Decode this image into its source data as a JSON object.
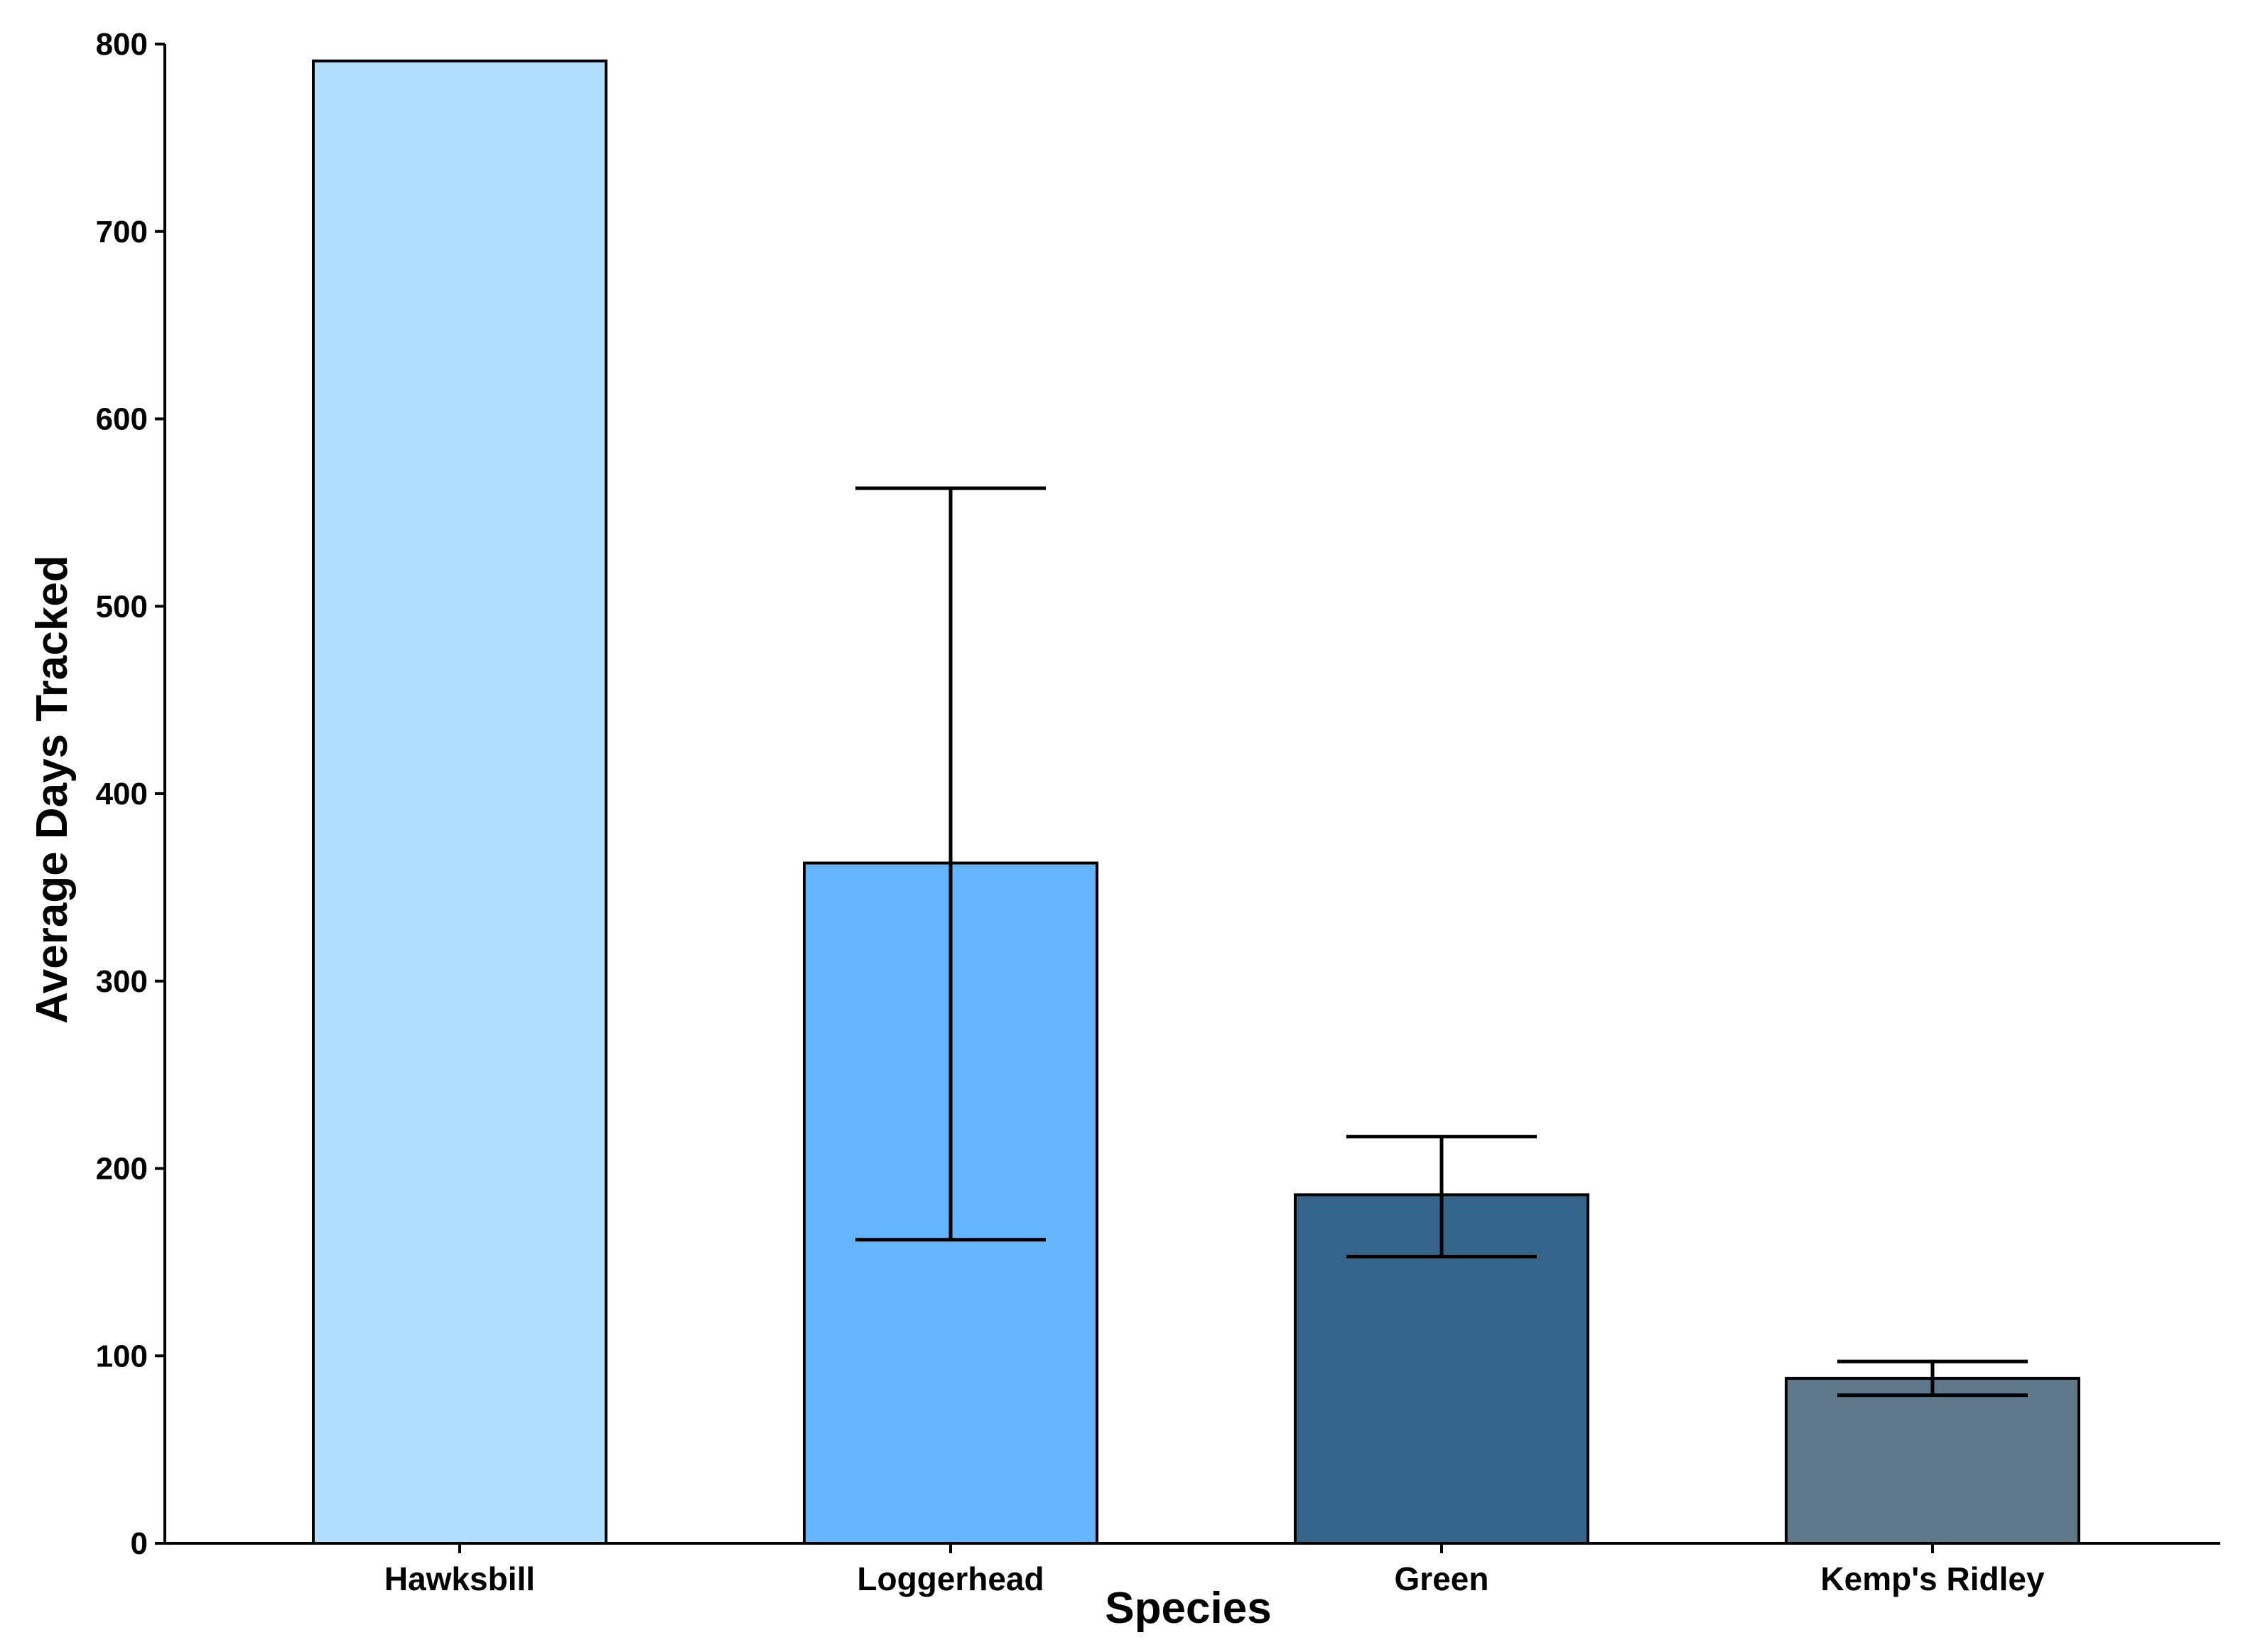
{
  "chart_data": {
    "type": "bar",
    "title": "",
    "xlabel": "Species",
    "ylabel": "Average Days Tracked",
    "categories": [
      "Hawksbill",
      "Loggerhead",
      "Green",
      "Kemp's Ridley"
    ],
    "values": [
      791,
      363,
      186,
      88
    ],
    "error_bars": [
      null,
      {
        "low": 162,
        "high": 563
      },
      {
        "low": 153,
        "high": 217
      },
      {
        "low": 79,
        "high": 97
      }
    ],
    "colors": [
      "#B0DFFF",
      "#64B5FD",
      "#36658C",
      "#5E7889"
    ],
    "ylim": [
      0,
      800
    ],
    "yticks": [
      0,
      100,
      200,
      300,
      400,
      500,
      600,
      700,
      800
    ],
    "ytick_labels": [
      "0",
      "100",
      "200",
      "300",
      "400",
      "500",
      "600",
      "700",
      "800"
    ],
    "grid": false,
    "legend": "none"
  }
}
